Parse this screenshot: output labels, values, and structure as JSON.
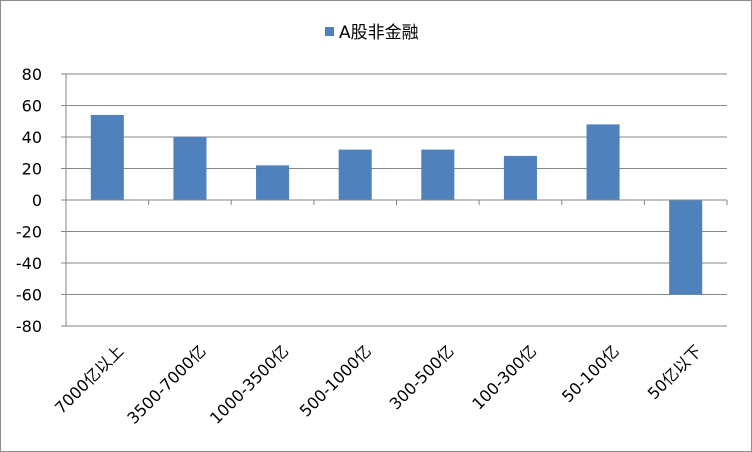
{
  "chart_data": {
    "type": "bar",
    "title": "",
    "xlabel": "",
    "ylabel": "",
    "categories": [
      "7000亿以上",
      "3500-7000亿",
      "1000-3500亿",
      "500-1000亿",
      "300-500亿",
      "100-300亿",
      "50-100亿",
      "50亿以下"
    ],
    "series": [
      {
        "name": "A股非金融",
        "values": [
          54,
          40,
          22,
          32,
          32,
          28,
          48,
          -60
        ],
        "color": "#4F81BD"
      }
    ],
    "ylim": [
      -80,
      80
    ],
    "yticks": [
      80,
      60,
      40,
      20,
      0,
      -20,
      -40,
      -60,
      -80
    ],
    "grid": true,
    "legend_position": "top"
  }
}
